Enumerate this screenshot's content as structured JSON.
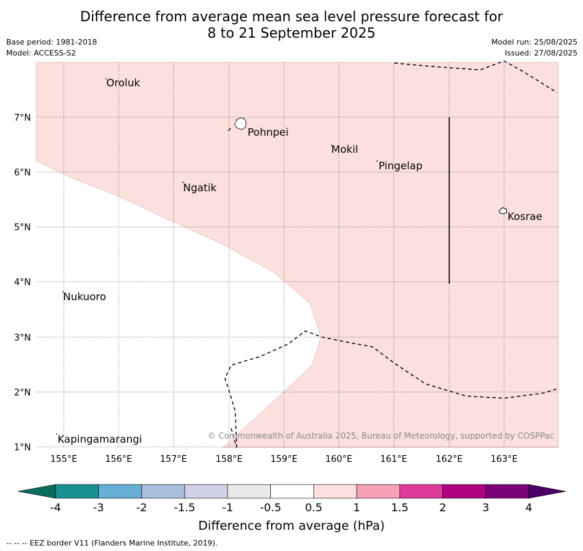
{
  "title_line1": "Difference from average mean sea level pressure forecast for",
  "title_line2": "8 to 21 September 2025",
  "info_left": [
    "Base period: 1981-2018",
    "Model: ACCESS-S2"
  ],
  "info_right": [
    "Model run: 25/08/2025",
    "Issued: 27/08/2025"
  ],
  "lon_ticks": [
    "155°E",
    "156°E",
    "157°E",
    "158°E",
    "159°E",
    "160°E",
    "161°E",
    "162°E",
    "163°E"
  ],
  "lat_ticks": [
    "7°N",
    "6°N",
    "5°N",
    "4°N",
    "3°N",
    "2°N",
    "1°N"
  ],
  "places": [
    {
      "name": "Oroluk"
    },
    {
      "name": "Pohnpei"
    },
    {
      "name": "Mokil"
    },
    {
      "name": "Pingelap"
    },
    {
      "name": "Ngatik"
    },
    {
      "name": "Kosrae"
    },
    {
      "name": "Nukuoro"
    },
    {
      "name": "Kapingamarangi"
    }
  ],
  "copyright": "© Commonwealth of Australia 2025, Bureau of Meteorology, supported by COSPPac",
  "colorbar": {
    "labels": [
      "-4",
      "-3",
      "-2",
      "-1.5",
      "-1",
      "-0.5",
      "0.5",
      "1",
      "1.5",
      "2",
      "3",
      "4"
    ],
    "colors": [
      "#1a9191",
      "#66aed4",
      "#a9bedc",
      "#d0d0e6",
      "#e8e8e8",
      "#ffffff",
      "#fce0de",
      "#f8a1b6",
      "#de3a9c",
      "#ae0282",
      "#7a0177"
    ],
    "low_extend_color": "#0b6b5e",
    "high_extend_color": "#4a0066",
    "title": "Difference from average (hPa)"
  },
  "legend_note": "--  --  -- EEZ border V11 (Flanders Marine Institute, 2019).",
  "anomaly_fill_color": "#fce0de"
}
